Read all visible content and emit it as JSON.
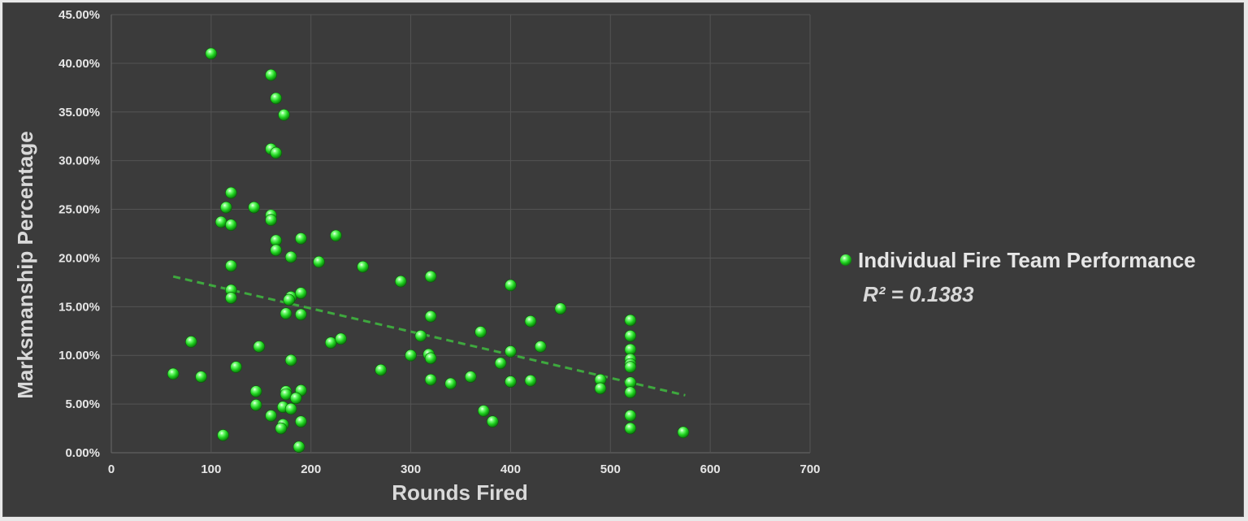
{
  "chart_data": {
    "type": "scatter",
    "xlabel": "Rounds Fired",
    "ylabel": "Marksmanship Percentage",
    "xlim": [
      0,
      700
    ],
    "ylim": [
      0,
      0.45
    ],
    "x_ticks": [
      "0",
      "100",
      "200",
      "300",
      "400",
      "500",
      "600",
      "700"
    ],
    "y_ticks": [
      "0.00%",
      "5.00%",
      "10.00%",
      "15.00%",
      "20.00%",
      "25.00%",
      "30.00%",
      "35.00%",
      "40.00%",
      "45.00%"
    ],
    "grid": true,
    "legend_position": "right",
    "series": [
      {
        "name": "Individual Fire Team Performance",
        "color": "#22dd22",
        "points": [
          [
            100,
            0.41
          ],
          [
            160,
            0.388
          ],
          [
            165,
            0.364
          ],
          [
            173,
            0.347
          ],
          [
            160,
            0.312
          ],
          [
            165,
            0.308
          ],
          [
            120,
            0.267
          ],
          [
            115,
            0.252
          ],
          [
            143,
            0.252
          ],
          [
            110,
            0.237
          ],
          [
            120,
            0.234
          ],
          [
            160,
            0.244
          ],
          [
            160,
            0.239
          ],
          [
            165,
            0.218
          ],
          [
            165,
            0.208
          ],
          [
            190,
            0.22
          ],
          [
            225,
            0.223
          ],
          [
            180,
            0.201
          ],
          [
            208,
            0.196
          ],
          [
            120,
            0.192
          ],
          [
            252,
            0.191
          ],
          [
            120,
            0.167
          ],
          [
            120,
            0.159
          ],
          [
            180,
            0.16
          ],
          [
            178,
            0.157
          ],
          [
            190,
            0.164
          ],
          [
            290,
            0.176
          ],
          [
            320,
            0.181
          ],
          [
            400,
            0.172
          ],
          [
            175,
            0.143
          ],
          [
            190,
            0.142
          ],
          [
            320,
            0.14
          ],
          [
            420,
            0.135
          ],
          [
            450,
            0.148
          ],
          [
            520,
            0.136
          ],
          [
            80,
            0.114
          ],
          [
            148,
            0.109
          ],
          [
            220,
            0.113
          ],
          [
            230,
            0.117
          ],
          [
            310,
            0.12
          ],
          [
            370,
            0.124
          ],
          [
            430,
            0.109
          ],
          [
            520,
            0.12
          ],
          [
            520,
            0.106
          ],
          [
            180,
            0.095
          ],
          [
            125,
            0.088
          ],
          [
            300,
            0.1
          ],
          [
            318,
            0.101
          ],
          [
            320,
            0.097
          ],
          [
            390,
            0.092
          ],
          [
            400,
            0.104
          ],
          [
            520,
            0.096
          ],
          [
            520,
            0.091
          ],
          [
            520,
            0.088
          ],
          [
            62,
            0.081
          ],
          [
            90,
            0.078
          ],
          [
            270,
            0.085
          ],
          [
            320,
            0.075
          ],
          [
            340,
            0.071
          ],
          [
            360,
            0.078
          ],
          [
            400,
            0.073
          ],
          [
            420,
            0.074
          ],
          [
            490,
            0.075
          ],
          [
            490,
            0.066
          ],
          [
            520,
            0.072
          ],
          [
            520,
            0.062
          ],
          [
            145,
            0.063
          ],
          [
            175,
            0.063
          ],
          [
            175,
            0.06
          ],
          [
            190,
            0.064
          ],
          [
            185,
            0.056
          ],
          [
            145,
            0.049
          ],
          [
            172,
            0.047
          ],
          [
            180,
            0.045
          ],
          [
            160,
            0.038
          ],
          [
            172,
            0.029
          ],
          [
            170,
            0.025
          ],
          [
            190,
            0.032
          ],
          [
            373,
            0.043
          ],
          [
            382,
            0.032
          ],
          [
            520,
            0.038
          ],
          [
            520,
            0.025
          ],
          [
            573,
            0.021
          ],
          [
            112,
            0.018
          ],
          [
            188,
            0.006
          ]
        ]
      }
    ],
    "trendline": {
      "type": "linear",
      "r2_label": "R² = 0.1383",
      "x_start": 62,
      "y_start": 0.181,
      "x_end": 575,
      "y_end": 0.059,
      "color": "#3ea83e"
    }
  }
}
